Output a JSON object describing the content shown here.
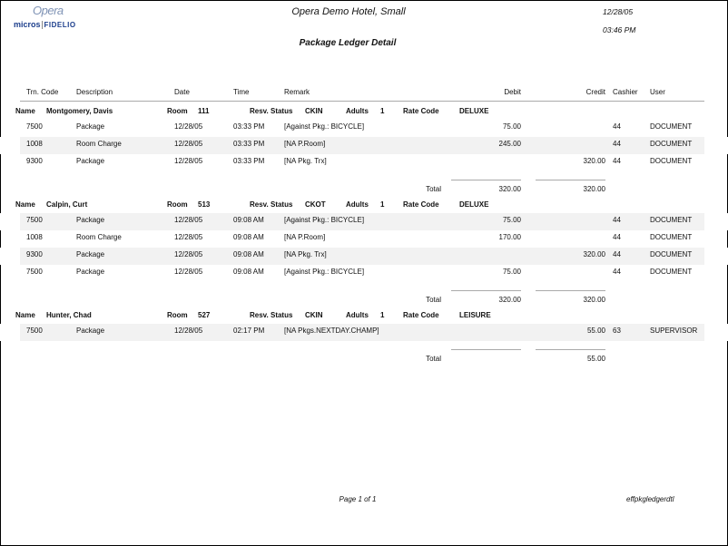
{
  "header": {
    "logo_opera": "Opera",
    "logo_micros": "micros",
    "logo_fidelio": "FIDELIO",
    "hotel_name": "Opera Demo Hotel, Small",
    "date": "12/28/05",
    "time": "03:46 PM",
    "report_title": "Package Ledger Detail"
  },
  "columns": {
    "trn_code": "Trn. Code",
    "description": "Description",
    "date": "Date",
    "time": "Time",
    "remark": "Remark",
    "debit": "Debit",
    "credit": "Credit",
    "cashier": "Cashier",
    "user": "User"
  },
  "labels": {
    "name": "Name",
    "room": "Room",
    "resv_status": "Resv. Status",
    "adults": "Adults",
    "rate_code": "Rate Code",
    "total": "Total"
  },
  "groups": [
    {
      "name": "Montgomery, Davis",
      "room": "111",
      "status": "CKIN",
      "adults": "1",
      "rate_code": "DELUXE",
      "rows": [
        {
          "code": "7500",
          "desc": "Package",
          "date": "12/28/05",
          "time": "03:33 PM",
          "remark": "[Against Pkg.: BICYCLE]",
          "debit": "75.00",
          "credit": "",
          "cashier": "44",
          "user": "DOCUMENT",
          "shaded": false
        },
        {
          "code": "1008",
          "desc": "Room Charge",
          "date": "12/28/05",
          "time": "03:33 PM",
          "remark": "[NA P.Room]",
          "debit": "245.00",
          "credit": "",
          "cashier": "44",
          "user": "DOCUMENT",
          "shaded": true
        },
        {
          "code": "9300",
          "desc": "Package",
          "date": "12/28/05",
          "time": "03:33 PM",
          "remark": "[NA Pkg. Trx]",
          "debit": "",
          "credit": "320.00",
          "cashier": "44",
          "user": "DOCUMENT",
          "shaded": false
        }
      ],
      "total_debit": "320.00",
      "total_credit": "320.00"
    },
    {
      "name": "Calpin, Curt",
      "room": "513",
      "status": "CKOT",
      "adults": "1",
      "rate_code": "DELUXE",
      "rows": [
        {
          "code": "7500",
          "desc": "Package",
          "date": "12/28/05",
          "time": "09:08 AM",
          "remark": "[Against Pkg.: BICYCLE]",
          "debit": "75.00",
          "credit": "",
          "cashier": "44",
          "user": "DOCUMENT",
          "shaded": true
        },
        {
          "code": "1008",
          "desc": "Room Charge",
          "date": "12/28/05",
          "time": "09:08 AM",
          "remark": "[NA P.Room]",
          "debit": "170.00",
          "credit": "",
          "cashier": "44",
          "user": "DOCUMENT",
          "shaded": false
        },
        {
          "code": "9300",
          "desc": "Package",
          "date": "12/28/05",
          "time": "09:08 AM",
          "remark": "[NA Pkg. Trx]",
          "debit": "",
          "credit": "320.00",
          "cashier": "44",
          "user": "DOCUMENT",
          "shaded": true
        },
        {
          "code": "7500",
          "desc": "Package",
          "date": "12/28/05",
          "time": "09:08 AM",
          "remark": "[Against Pkg.: BICYCLE]",
          "debit": "75.00",
          "credit": "",
          "cashier": "44",
          "user": "DOCUMENT",
          "shaded": false
        }
      ],
      "total_debit": "320.00",
      "total_credit": "320.00"
    },
    {
      "name": "Hunter, Chad",
      "room": "527",
      "status": "CKIN",
      "adults": "1",
      "rate_code": "LEISURE",
      "rows": [
        {
          "code": "7500",
          "desc": "Package",
          "date": "12/28/05",
          "time": "02:17 PM",
          "remark": "[NA Pkgs.NEXTDAY.CHAMP]",
          "debit": "",
          "credit": "55.00",
          "cashier": "63",
          "user": "SUPERVISOR",
          "shaded": true
        }
      ],
      "total_debit": "",
      "total_credit": "55.00"
    }
  ],
  "footer": {
    "page": "Page 1 of 1",
    "report_id": "effpkgledgerdtl"
  }
}
